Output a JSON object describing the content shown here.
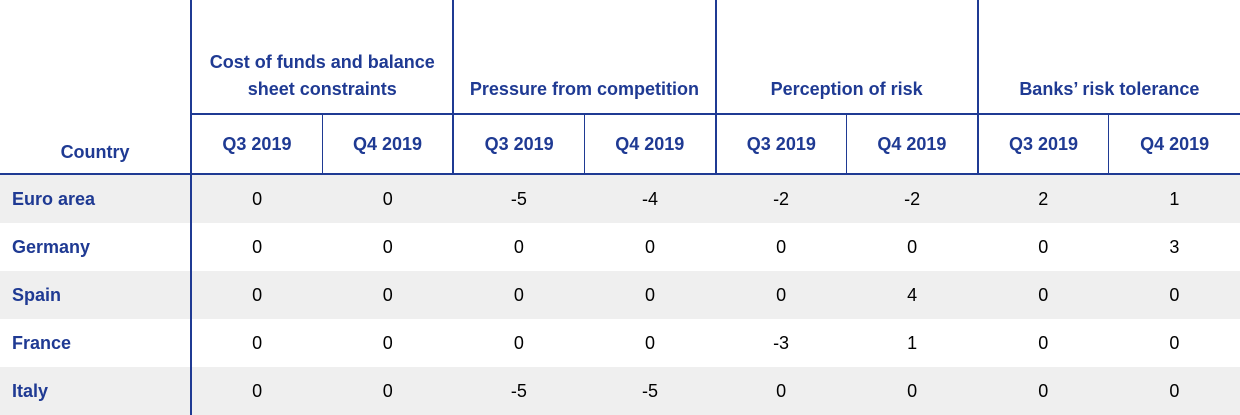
{
  "table": {
    "country_header": "Country",
    "groups": [
      "Cost of funds and balance sheet constraints",
      "Pressure from competition",
      "Perception of risk",
      "Banks’ risk tolerance"
    ],
    "periods": [
      "Q3 2019",
      "Q4 2019",
      "Q3 2019",
      "Q4 2019",
      "Q3 2019",
      "Q4 2019",
      "Q3 2019",
      "Q4 2019"
    ],
    "rows": [
      {
        "country": "Euro area",
        "values": [
          0,
          0,
          -5,
          -4,
          -2,
          -2,
          2,
          1
        ]
      },
      {
        "country": "Germany",
        "values": [
          0,
          0,
          0,
          0,
          0,
          0,
          0,
          3
        ]
      },
      {
        "country": "Spain",
        "values": [
          0,
          0,
          0,
          0,
          0,
          4,
          0,
          0
        ]
      },
      {
        "country": "France",
        "values": [
          0,
          0,
          0,
          0,
          -3,
          1,
          0,
          0
        ]
      },
      {
        "country": "Italy",
        "values": [
          0,
          0,
          -5,
          -5,
          0,
          0,
          0,
          0
        ]
      }
    ]
  }
}
